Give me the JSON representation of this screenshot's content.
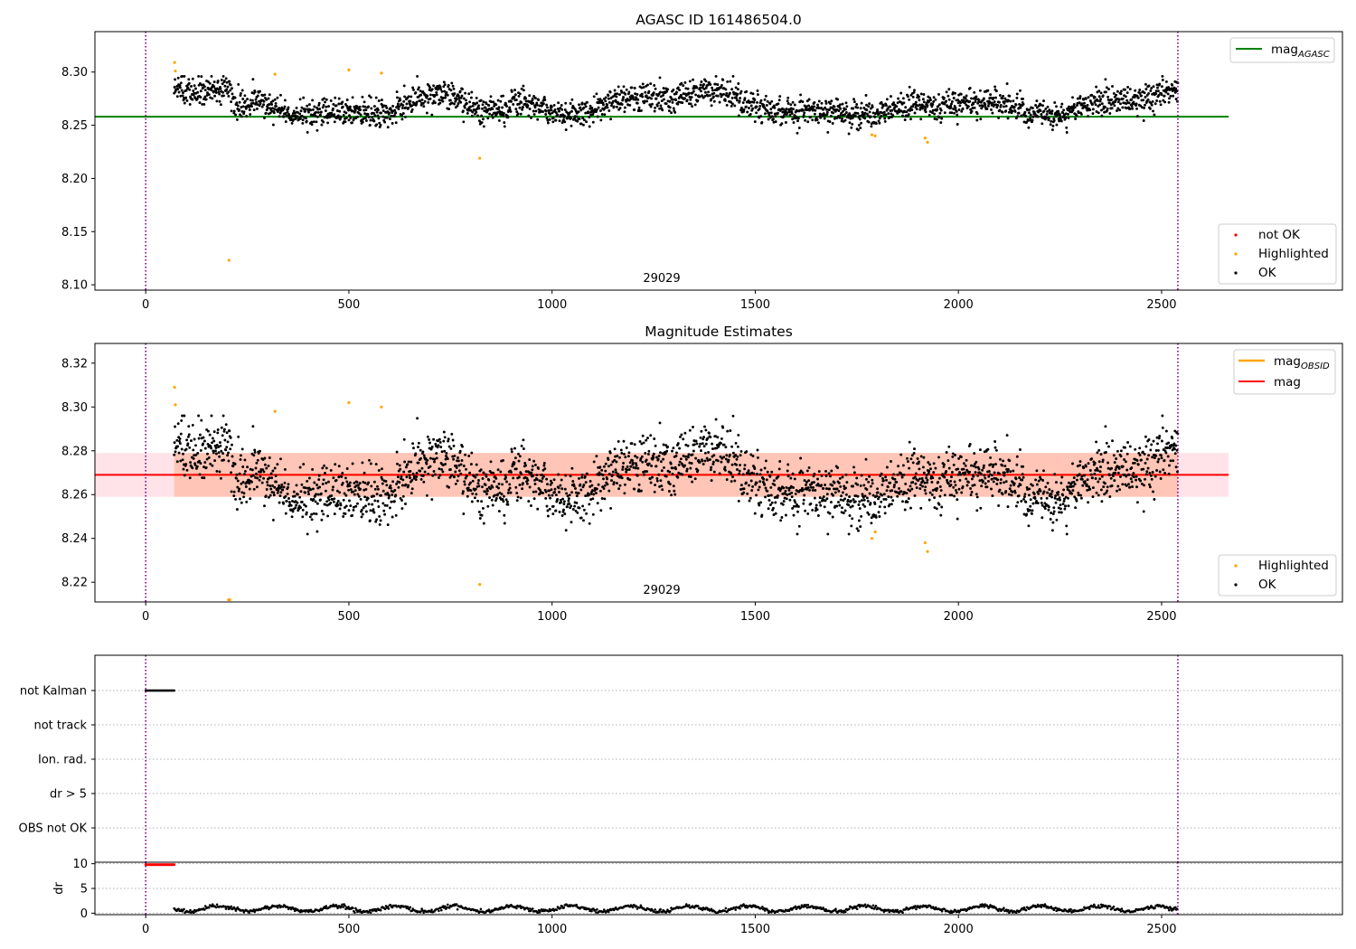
{
  "figure": {
    "panel1_title": "AGASC ID 161486504.0",
    "panel2_title": "Magnitude Estimates",
    "obsid_label": "29029",
    "xticks": [
      "0",
      "500",
      "1000",
      "1500",
      "2000",
      "2500"
    ]
  },
  "legends": {
    "p1_line": {
      "label": "mag",
      "sub": "AGASC"
    },
    "p1_points": [
      "not OK",
      "Highlighted",
      "OK"
    ],
    "p2_lines": [
      {
        "label": "mag",
        "sub": "OBSID"
      },
      {
        "label": "mag",
        "sub": ""
      }
    ],
    "p2_points": [
      "Highlighted",
      "OK"
    ]
  },
  "colors": {
    "ok": "#000000",
    "highlighted": "#ffa500",
    "not_ok": "#ff0000",
    "agasc_line": "#008000",
    "obsid_line": "#ffa500",
    "mag_line": "#ff0000",
    "band_fill": "#ffc0cb",
    "band_overlap": "#ffa07a",
    "boundary": "#800080",
    "grid": "#b0b0b0"
  },
  "chart_data": [
    {
      "type": "scatter",
      "title": "AGASC ID 161486504.0",
      "xlim": [
        -125,
        2945
      ],
      "ylim": [
        8.095,
        8.338
      ],
      "yticks": [
        "8.10",
        "8.15",
        "8.20",
        "8.25",
        "8.30"
      ],
      "xticks": [
        0,
        500,
        1000,
        1500,
        2000,
        2500
      ],
      "legend": [
        "top-right",
        "bottom-right"
      ],
      "lines": [
        {
          "name": "magAGASC",
          "y": 8.258,
          "x": [
            -125,
            2665
          ]
        }
      ],
      "vertical_markers": [
        0,
        2540
      ],
      "annotation": "29029",
      "series": [
        {
          "name": "OK",
          "x_range": [
            70,
            2540
          ],
          "n_points": 2470,
          "approx_mean": 8.27,
          "approx_range": [
            8.242,
            8.296
          ]
        },
        {
          "name": "Highlighted",
          "points": [
            [
              71,
              8.309
            ],
            [
              73,
              8.301
            ],
            [
              205,
              8.123
            ],
            [
              318,
              8.298
            ],
            [
              500,
              8.302
            ],
            [
              580,
              8.299
            ],
            [
              822,
              8.219
            ],
            [
              1787,
              8.241
            ],
            [
              1795,
              8.24
            ],
            [
              1918,
              8.238
            ],
            [
              1924,
              8.234
            ]
          ]
        },
        {
          "name": "not OK",
          "points": []
        }
      ]
    },
    {
      "type": "scatter",
      "title": "Magnitude Estimates",
      "xlim": [
        -125,
        2945
      ],
      "ylim": [
        8.211,
        8.329
      ],
      "yticks": [
        "8.22",
        "8.24",
        "8.26",
        "8.28",
        "8.30",
        "8.32"
      ],
      "xticks": [
        0,
        500,
        1000,
        1500,
        2000,
        2500
      ],
      "legend": [
        "top-right",
        "bottom-right"
      ],
      "lines": [
        {
          "name": "magOBSID",
          "y": 8.269,
          "x": [
            -125,
            2665
          ]
        },
        {
          "name": "mag",
          "y": 8.269,
          "x": [
            -125,
            2665
          ]
        }
      ],
      "bands": [
        {
          "name": "mag std",
          "y": [
            8.259,
            8.279
          ],
          "x": [
            -125,
            2665
          ],
          "color": "pink"
        },
        {
          "name": "magOBSID std",
          "y": [
            8.259,
            8.279
          ],
          "x": [
            70,
            2540
          ],
          "color": "lightsalmon"
        }
      ],
      "vertical_markers": [
        0,
        2540
      ],
      "annotation": "29029",
      "series": [
        {
          "name": "OK",
          "x_range": [
            70,
            2540
          ],
          "n_points": 2470,
          "approx_mean": 8.268,
          "approx_range": [
            8.242,
            8.296
          ]
        },
        {
          "name": "Highlighted",
          "points": [
            [
              71,
              8.309
            ],
            [
              73,
              8.301
            ],
            [
              204,
              8.212
            ],
            [
              207,
              8.212
            ],
            [
              318,
              8.298
            ],
            [
              500,
              8.302
            ],
            [
              580,
              8.3
            ],
            [
              822,
              8.219
            ],
            [
              1787,
              8.24
            ],
            [
              1795,
              8.243
            ],
            [
              1918,
              8.238
            ],
            [
              1924,
              8.234
            ]
          ]
        }
      ]
    },
    {
      "type": "scatter",
      "title": "",
      "xlim": [
        -125,
        2945
      ],
      "categories": [
        "not Kalman",
        "not track",
        "Ion. rad.",
        "dr > 5",
        "OBS not OK"
      ],
      "flags": [
        {
          "category": "not Kalman",
          "x_range": [
            0,
            70
          ]
        }
      ],
      "vertical_markers": [
        0,
        2540
      ]
    },
    {
      "type": "scatter",
      "ylabel": "dr",
      "xlim": [
        -125,
        2945
      ],
      "ylim": [
        -0.3,
        10.3
      ],
      "yticks": [
        "0",
        "5",
        "10"
      ],
      "xticks": [
        0,
        500,
        1000,
        1500,
        2000,
        2500
      ],
      "vertical_markers": [
        0,
        2540
      ],
      "series": [
        {
          "name": "dr not OK",
          "x_range": [
            0,
            70
          ],
          "y": 9.8
        },
        {
          "name": "dr",
          "x_range": [
            70,
            2540
          ],
          "approx_range": [
            0.1,
            1.8
          ]
        }
      ]
    }
  ]
}
